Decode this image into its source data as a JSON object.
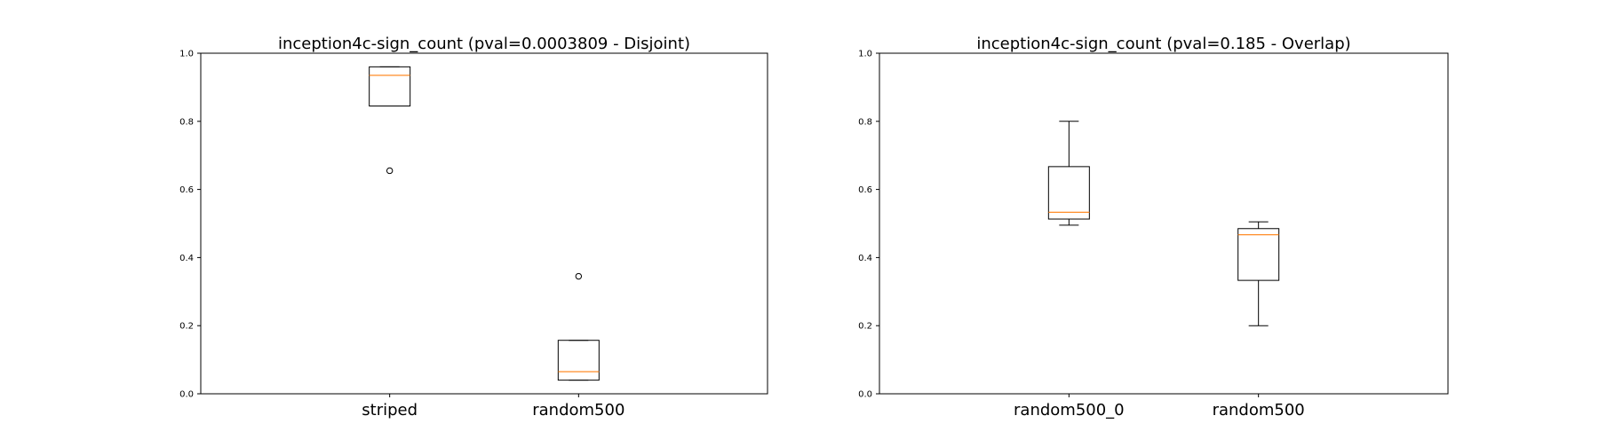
{
  "chart_data": [
    {
      "type": "box",
      "title": "inception4c-sign_count (pval=0.0003809 - Disjoint)",
      "xlabel": "",
      "ylabel": "",
      "ylim": [
        0,
        1
      ],
      "yticks": [
        "0.0",
        "0.2",
        "0.4",
        "0.6",
        "0.8",
        "1.0"
      ],
      "grid": false,
      "categories": [
        "striped",
        "random500"
      ],
      "boxes": [
        {
          "category": "striped",
          "whislo": 0.845,
          "q1": 0.845,
          "median": 0.935,
          "q3": 0.96,
          "whishi": 0.96,
          "fliers": [
            0.655
          ]
        },
        {
          "category": "random500",
          "whislo": 0.04,
          "q1": 0.04,
          "median": 0.065,
          "q3": 0.157,
          "whishi": 0.157,
          "fliers": [
            0.345
          ]
        }
      ]
    },
    {
      "type": "box",
      "title": "inception4c-sign_count (pval=0.185 - Overlap)",
      "xlabel": "",
      "ylabel": "",
      "ylim": [
        0,
        1
      ],
      "yticks": [
        "0.0",
        "0.2",
        "0.4",
        "0.6",
        "0.8",
        "1.0"
      ],
      "grid": false,
      "categories": [
        "random500_0",
        "random500"
      ],
      "boxes": [
        {
          "category": "random500_0",
          "whislo": 0.495,
          "q1": 0.513,
          "median": 0.533,
          "q3": 0.667,
          "whishi": 0.8,
          "fliers": []
        },
        {
          "category": "random500",
          "whislo": 0.2,
          "q1": 0.333,
          "median": 0.467,
          "q3": 0.485,
          "whishi": 0.505,
          "fliers": []
        }
      ]
    }
  ],
  "colors": {
    "box": "#000000",
    "median": "#ff7f0e",
    "flier": "#000000"
  }
}
